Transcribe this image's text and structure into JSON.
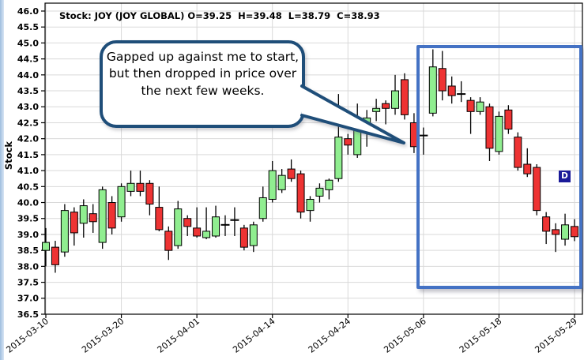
{
  "window": {
    "left_strip_color": "#9fbede",
    "background": "#ffffff"
  },
  "title": {
    "text": "Stock: JOY (JOY GLOBAL) O=39.25  H=39.48  L=38.79  C=38.93"
  },
  "annotation": {
    "callout_text": "Gapped up against me to start, but then dropped in price over the next few weeks.",
    "border_color": "#1F4E79",
    "fill": "#ffffff"
  },
  "highlight_box": {
    "color": "#4472C4"
  },
  "marker_badge": {
    "label": "D",
    "bg": "#1a1a99",
    "fg": "#ffffff"
  },
  "chart_data": {
    "type": "candlestick",
    "title": "Stock: JOY (JOY GLOBAL)",
    "last_quote": {
      "open": 39.25,
      "high": 39.48,
      "low": 38.79,
      "close": 38.93
    },
    "ylabel": "Stock",
    "ylim": [
      36.5,
      46.0
    ],
    "ytick_step": 0.5,
    "grid": true,
    "grid_color": "#d9d9d9",
    "axis_color": "#000000",
    "up_color": "#90EE90",
    "down_color": "#EE3333",
    "xtick_every": 8,
    "xtick_labels": [
      "2015-03-10",
      "2015-03-20",
      "2015-04-01",
      "2015-04-14",
      "2015-04-24",
      "2015-05-06",
      "2015-05-18",
      "2015-05-29"
    ],
    "candles": [
      {
        "d": "2015-03-10",
        "o": 38.5,
        "h": 39.2,
        "l": 38.0,
        "c": 38.75
      },
      {
        "d": "2015-03-11",
        "o": 38.6,
        "h": 38.8,
        "l": 37.8,
        "c": 38.05
      },
      {
        "d": "2015-03-12",
        "o": 38.45,
        "h": 39.95,
        "l": 38.3,
        "c": 39.75
      },
      {
        "d": "2015-03-13",
        "o": 39.7,
        "h": 39.85,
        "l": 38.65,
        "c": 39.05
      },
      {
        "d": "2015-03-16",
        "o": 39.35,
        "h": 40.1,
        "l": 38.9,
        "c": 39.9
      },
      {
        "d": "2015-03-17",
        "o": 39.65,
        "h": 39.95,
        "l": 39.05,
        "c": 39.4
      },
      {
        "d": "2015-03-18",
        "o": 38.75,
        "h": 40.5,
        "l": 38.55,
        "c": 40.4
      },
      {
        "d": "2015-03-19",
        "o": 40.0,
        "h": 40.2,
        "l": 39.0,
        "c": 39.2
      },
      {
        "d": "2015-03-20",
        "o": 39.55,
        "h": 40.6,
        "l": 39.4,
        "c": 40.5
      },
      {
        "d": "2015-03-23",
        "o": 40.35,
        "h": 41.0,
        "l": 40.2,
        "c": 40.6
      },
      {
        "d": "2015-03-24",
        "o": 40.6,
        "h": 41.0,
        "l": 40.2,
        "c": 40.35
      },
      {
        "d": "2015-03-25",
        "o": 40.6,
        "h": 40.7,
        "l": 39.6,
        "c": 39.95
      },
      {
        "d": "2015-03-26",
        "o": 39.85,
        "h": 40.5,
        "l": 39.1,
        "c": 39.15
      },
      {
        "d": "2015-03-27",
        "o": 39.1,
        "h": 39.25,
        "l": 38.2,
        "c": 38.5
      },
      {
        "d": "2015-03-30",
        "o": 38.65,
        "h": 40.05,
        "l": 38.55,
        "c": 39.8
      },
      {
        "d": "2015-03-31",
        "o": 39.5,
        "h": 39.6,
        "l": 38.95,
        "c": 39.25
      },
      {
        "d": "2015-04-01",
        "o": 39.2,
        "h": 39.85,
        "l": 38.9,
        "c": 38.95
      },
      {
        "d": "2015-04-02",
        "o": 38.9,
        "h": 39.85,
        "l": 38.85,
        "c": 39.1
      },
      {
        "d": "2015-04-06",
        "o": 38.95,
        "h": 39.9,
        "l": 38.9,
        "c": 39.55
      },
      {
        "d": "2015-04-07",
        "o": 39.3,
        "h": 39.6,
        "l": 38.95,
        "c": 39.3
      },
      {
        "d": "2015-04-08",
        "o": 39.45,
        "h": 39.85,
        "l": 38.95,
        "c": 39.45
      },
      {
        "d": "2015-04-09",
        "o": 39.2,
        "h": 39.3,
        "l": 38.5,
        "c": 38.6
      },
      {
        "d": "2015-04-10",
        "o": 38.65,
        "h": 39.4,
        "l": 38.45,
        "c": 39.3
      },
      {
        "d": "2015-04-13",
        "o": 39.5,
        "h": 40.5,
        "l": 39.4,
        "c": 40.15
      },
      {
        "d": "2015-04-14",
        "o": 40.1,
        "h": 41.3,
        "l": 40.0,
        "c": 41.0
      },
      {
        "d": "2015-04-15",
        "o": 40.4,
        "h": 41.05,
        "l": 40.3,
        "c": 40.85
      },
      {
        "d": "2015-04-16",
        "o": 41.05,
        "h": 41.35,
        "l": 40.65,
        "c": 40.75
      },
      {
        "d": "2015-04-17",
        "o": 40.9,
        "h": 41.0,
        "l": 39.5,
        "c": 39.7
      },
      {
        "d": "2015-04-20",
        "o": 39.75,
        "h": 40.2,
        "l": 39.4,
        "c": 40.1
      },
      {
        "d": "2015-04-21",
        "o": 40.2,
        "h": 40.6,
        "l": 40.0,
        "c": 40.45
      },
      {
        "d": "2015-04-22",
        "o": 40.4,
        "h": 40.75,
        "l": 40.1,
        "c": 40.7
      },
      {
        "d": "2015-04-23",
        "o": 40.75,
        "h": 43.4,
        "l": 40.65,
        "c": 42.05
      },
      {
        "d": "2015-04-24",
        "o": 42.0,
        "h": 42.15,
        "l": 41.5,
        "c": 41.8
      },
      {
        "d": "2015-04-27",
        "o": 41.5,
        "h": 43.1,
        "l": 41.4,
        "c": 42.45
      },
      {
        "d": "2015-04-28",
        "o": 42.35,
        "h": 42.9,
        "l": 41.75,
        "c": 42.65
      },
      {
        "d": "2015-04-29",
        "o": 42.85,
        "h": 43.25,
        "l": 42.55,
        "c": 42.95
      },
      {
        "d": "2015-04-30",
        "o": 43.1,
        "h": 43.2,
        "l": 42.45,
        "c": 42.95
      },
      {
        "d": "2015-05-01",
        "o": 42.95,
        "h": 44.0,
        "l": 42.75,
        "c": 43.5
      },
      {
        "d": "2015-05-04",
        "o": 43.85,
        "h": 44.05,
        "l": 42.6,
        "c": 42.75
      },
      {
        "d": "2015-05-05",
        "o": 42.5,
        "h": 42.8,
        "l": 41.55,
        "c": 41.75
      },
      {
        "d": "2015-05-06",
        "o": 42.1,
        "h": 42.35,
        "l": 41.5,
        "c": 42.1
      },
      {
        "d": "2015-05-07",
        "o": 42.8,
        "h": 44.8,
        "l": 42.7,
        "c": 44.25
      },
      {
        "d": "2015-05-08",
        "o": 44.2,
        "h": 44.75,
        "l": 43.2,
        "c": 43.5
      },
      {
        "d": "2015-05-11",
        "o": 43.65,
        "h": 43.95,
        "l": 43.1,
        "c": 43.35
      },
      {
        "d": "2015-05-12",
        "o": 43.4,
        "h": 43.8,
        "l": 43.15,
        "c": 43.4
      },
      {
        "d": "2015-05-13",
        "o": 43.2,
        "h": 43.3,
        "l": 42.15,
        "c": 42.85
      },
      {
        "d": "2015-05-14",
        "o": 42.85,
        "h": 43.3,
        "l": 42.75,
        "c": 43.15
      },
      {
        "d": "2015-05-15",
        "o": 43.0,
        "h": 43.1,
        "l": 41.3,
        "c": 41.7
      },
      {
        "d": "2015-05-18",
        "o": 41.6,
        "h": 42.85,
        "l": 41.5,
        "c": 42.7
      },
      {
        "d": "2015-05-19",
        "o": 42.9,
        "h": 43.05,
        "l": 42.15,
        "c": 42.3
      },
      {
        "d": "2015-05-20",
        "o": 42.05,
        "h": 42.2,
        "l": 41.0,
        "c": 41.1
      },
      {
        "d": "2015-05-21",
        "o": 41.2,
        "h": 41.7,
        "l": 40.8,
        "c": 40.9
      },
      {
        "d": "2015-05-22",
        "o": 41.1,
        "h": 41.2,
        "l": 39.6,
        "c": 39.75
      },
      {
        "d": "2015-05-26",
        "o": 39.55,
        "h": 39.7,
        "l": 38.7,
        "c": 39.1
      },
      {
        "d": "2015-05-27",
        "o": 39.15,
        "h": 39.35,
        "l": 38.45,
        "c": 39.0
      },
      {
        "d": "2015-05-28",
        "o": 38.85,
        "h": 39.65,
        "l": 38.65,
        "c": 39.3
      },
      {
        "d": "2015-05-29",
        "o": 39.25,
        "h": 39.48,
        "l": 38.79,
        "c": 38.93
      }
    ]
  }
}
